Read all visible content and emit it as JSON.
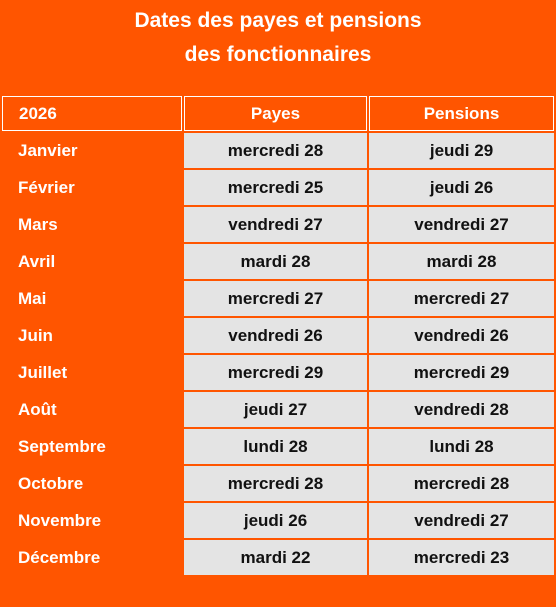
{
  "title": {
    "line1": "Dates des payes et pensions",
    "line2": "des fonctionnaires"
  },
  "header": {
    "year": "2026",
    "payes": "Payes",
    "pensions": "Pensions"
  },
  "rows": [
    {
      "month": "Janvier",
      "payes": "mercredi 28",
      "pensions": "jeudi 29"
    },
    {
      "month": "Février",
      "payes": "mercredi 25",
      "pensions": "jeudi 26"
    },
    {
      "month": "Mars",
      "payes": "vendredi 27",
      "pensions": "vendredi 27"
    },
    {
      "month": "Avril",
      "payes": "mardi 28",
      "pensions": "mardi 28"
    },
    {
      "month": "Mai",
      "payes": "mercredi 27",
      "pensions": "mercredi 27"
    },
    {
      "month": "Juin",
      "payes": "vendredi 26",
      "pensions": "vendredi 26"
    },
    {
      "month": "Juillet",
      "payes": "mercredi 29",
      "pensions": "mercredi 29"
    },
    {
      "month": "Août",
      "payes": "jeudi 27",
      "pensions": "vendredi 28"
    },
    {
      "month": "Septembre",
      "payes": "lundi 28",
      "pensions": "lundi 28"
    },
    {
      "month": "Octobre",
      "payes": "mercredi 28",
      "pensions": "mercredi 28"
    },
    {
      "month": "Novembre",
      "payes": "jeudi 26",
      "pensions": "vendredi 27"
    },
    {
      "month": "Décembre",
      "payes": "mardi 22",
      "pensions": "mercredi 23"
    }
  ],
  "colors": {
    "accent": "#ff5500",
    "cell_background": "#e4e4e4"
  }
}
